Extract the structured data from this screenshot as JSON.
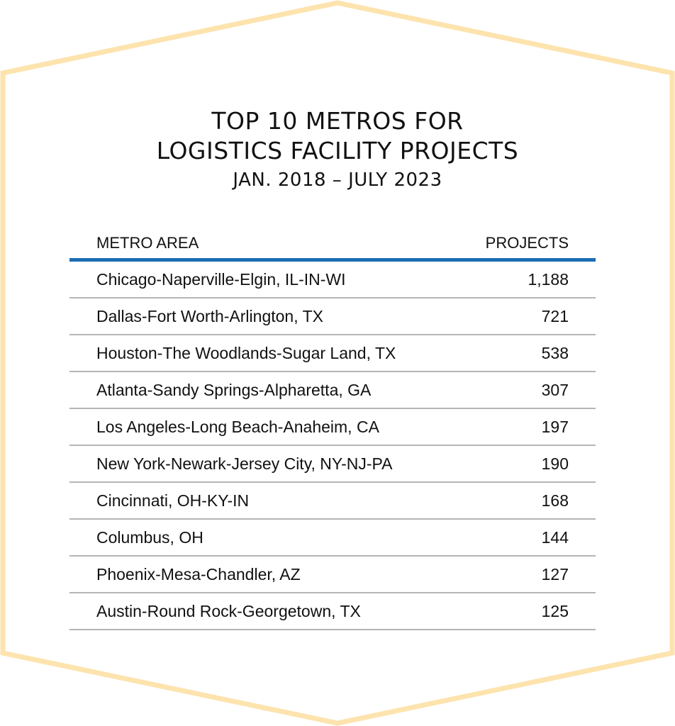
{
  "colors": {
    "frame": "#fde3ad",
    "header_rule": "#1c6db2",
    "row_rule": "#b5b5b5",
    "text": "#111111"
  },
  "chart_data": {
    "type": "table",
    "title_line1": "TOP 10 METROS FOR",
    "title_line2": "LOGISTICS FACILITY PROJECTS",
    "subtitle": "JAN. 2018 – JULY 2023",
    "columns": [
      "METRO AREA",
      "PROJECTS"
    ],
    "rows": [
      {
        "metro": "Chicago-Naperville-Elgin, IL-IN-WI",
        "projects": "1,188"
      },
      {
        "metro": "Dallas-Fort Worth-Arlington, TX",
        "projects": "721"
      },
      {
        "metro": "Houston-The Woodlands-Sugar Land, TX",
        "projects": "538"
      },
      {
        "metro": "Atlanta-Sandy Springs-Alpharetta, GA",
        "projects": "307"
      },
      {
        "metro": "Los Angeles-Long Beach-Anaheim, CA",
        "projects": "197"
      },
      {
        "metro": "New York-Newark-Jersey City, NY-NJ-PA",
        "projects": "190"
      },
      {
        "metro": "Cincinnati, OH-KY-IN",
        "projects": "168"
      },
      {
        "metro": "Columbus, OH",
        "projects": "144"
      },
      {
        "metro": "Phoenix-Mesa-Chandler, AZ",
        "projects": "127"
      },
      {
        "metro": "Austin-Round Rock-Georgetown, TX",
        "projects": "125"
      }
    ]
  }
}
